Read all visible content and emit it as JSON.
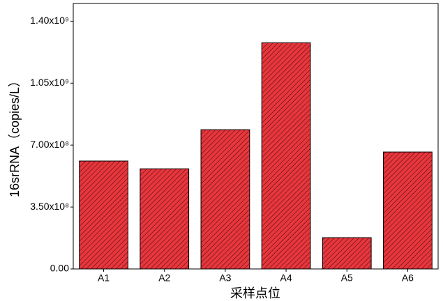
{
  "chart_data": {
    "type": "bar",
    "y_label": "16srRNA（copies/L）",
    "x_label": "采样点位",
    "categories": [
      "A1",
      "A2",
      "A3",
      "A4",
      "A5",
      "A6"
    ],
    "values": [
      610000000,
      566000000,
      787000000,
      1278000000,
      177000000,
      661000000
    ],
    "color": "#e8363c",
    "ylim": [
      0,
      1500000000
    ],
    "yticks": [
      {
        "value": 0,
        "label": "0.00"
      },
      {
        "value": 350000000,
        "label": "3.50x10⁸"
      },
      {
        "value": 700000000,
        "label": "7.00x10⁸"
      },
      {
        "value": 1050000000,
        "label": "1.05x10⁹"
      },
      {
        "value": 1400000000,
        "label": "1.40x10⁹"
      }
    ]
  }
}
